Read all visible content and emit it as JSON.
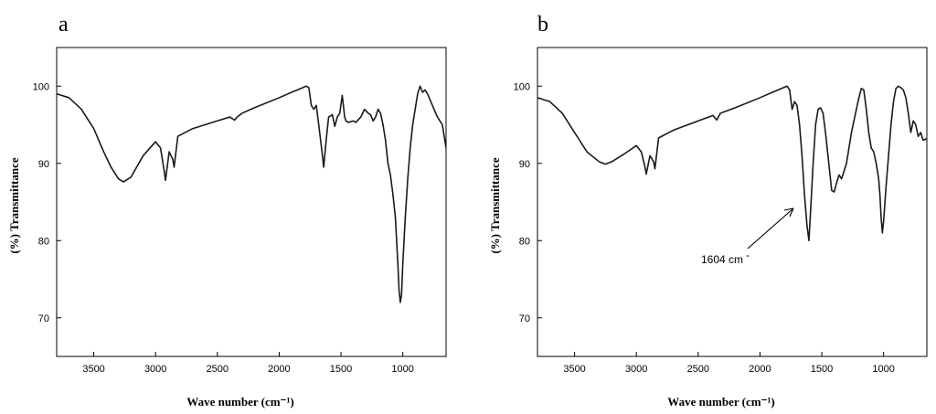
{
  "chart_data": [
    {
      "type": "line",
      "panel_label": "a",
      "xlabel": "Wave number (cm⁻¹)",
      "ylabel": "(%) Transmittance",
      "xlim": [
        3800,
        650
      ],
      "x_reversed": true,
      "ylim": [
        65,
        105
      ],
      "x_ticks": [
        3500,
        3000,
        2500,
        2000,
        1500,
        1000
      ],
      "y_ticks": [
        70,
        80,
        90,
        100
      ],
      "grid": false,
      "annotations": [],
      "series": [
        {
          "x": [
            3800,
            3700,
            3600,
            3500,
            3420,
            3360,
            3300,
            3260,
            3200,
            3100,
            3000,
            2960,
            2930,
            2920,
            2890,
            2860,
            2850,
            2820,
            2700,
            2500,
            2400,
            2360,
            2340,
            2300,
            2200,
            2000,
            1900,
            1780,
            1760,
            1740,
            1720,
            1700,
            1680,
            1650,
            1640,
            1620,
            1600,
            1570,
            1550,
            1530,
            1510,
            1490,
            1470,
            1460,
            1440,
            1400,
            1380,
            1340,
            1310,
            1280,
            1260,
            1240,
            1220,
            1200,
            1180,
            1160,
            1140,
            1120,
            1100,
            1080,
            1060,
            1040,
            1030,
            1020,
            1010,
            1000,
            980,
            960,
            940,
            920,
            900,
            880,
            860,
            840,
            820,
            800,
            760,
            720,
            680,
            650
          ],
          "y": [
            99.0,
            98.5,
            97.0,
            94.5,
            91.5,
            89.5,
            88.0,
            87.6,
            88.2,
            91.0,
            92.8,
            92.0,
            89.0,
            87.8,
            91.5,
            90.5,
            89.5,
            93.5,
            94.5,
            95.5,
            96.0,
            95.6,
            96.0,
            96.5,
            97.2,
            98.5,
            99.2,
            100.0,
            99.8,
            97.5,
            97.0,
            97.5,
            95.0,
            91.0,
            89.5,
            93.0,
            96.0,
            96.3,
            94.8,
            96.0,
            96.5,
            98.8,
            96.0,
            95.5,
            95.3,
            95.5,
            95.3,
            96.0,
            97.0,
            96.5,
            96.3,
            95.5,
            96.0,
            97.0,
            96.5,
            95.0,
            93.0,
            90.0,
            88.5,
            86.0,
            83.0,
            77.0,
            73.5,
            72.0,
            73.0,
            77.0,
            83.0,
            88.0,
            92.0,
            95.0,
            97.0,
            99.0,
            100.0,
            99.2,
            99.5,
            99.0,
            97.5,
            96.0,
            95.0,
            92.0
          ]
        }
      ]
    },
    {
      "type": "line",
      "panel_label": "b",
      "xlabel": "Wave number (cm⁻¹)",
      "ylabel": "(%) Transmittance",
      "xlim": [
        3800,
        650
      ],
      "x_reversed": true,
      "ylim": [
        65,
        105
      ],
      "x_ticks": [
        3500,
        3000,
        2500,
        2000,
        1500,
        1000
      ],
      "y_ticks": [
        70,
        80,
        90,
        100
      ],
      "grid": false,
      "annotations": [
        {
          "text": "1604 cm",
          "superscript": "-",
          "x": 1604,
          "y": 80
        }
      ],
      "series": [
        {
          "x": [
            3800,
            3700,
            3600,
            3500,
            3400,
            3300,
            3250,
            3200,
            3100,
            3000,
            2960,
            2930,
            2920,
            2890,
            2860,
            2850,
            2820,
            2700,
            2500,
            2380,
            2350,
            2320,
            2200,
            2000,
            1900,
            1780,
            1760,
            1740,
            1720,
            1700,
            1680,
            1660,
            1640,
            1620,
            1604,
            1590,
            1570,
            1550,
            1530,
            1510,
            1490,
            1470,
            1440,
            1420,
            1400,
            1380,
            1360,
            1340,
            1300,
            1260,
            1220,
            1200,
            1180,
            1160,
            1140,
            1120,
            1100,
            1080,
            1060,
            1040,
            1030,
            1020,
            1010,
            1000,
            980,
            960,
            940,
            920,
            900,
            880,
            860,
            840,
            820,
            800,
            780,
            760,
            740,
            720,
            700,
            680,
            650
          ],
          "y": [
            98.5,
            98.0,
            96.5,
            94.0,
            91.5,
            90.2,
            89.9,
            90.2,
            91.2,
            92.3,
            91.5,
            89.5,
            88.6,
            91.0,
            90.2,
            89.3,
            93.3,
            94.3,
            95.5,
            96.2,
            95.6,
            96.5,
            97.2,
            98.5,
            99.2,
            100.0,
            99.5,
            97.0,
            98.0,
            97.5,
            95.0,
            91.0,
            86.0,
            82.0,
            80.0,
            84.0,
            90.0,
            95.0,
            97.0,
            97.2,
            96.5,
            94.0,
            89.5,
            86.5,
            86.3,
            87.5,
            88.5,
            88.0,
            90.0,
            94.0,
            97.0,
            98.5,
            99.7,
            99.5,
            97.0,
            94.0,
            92.0,
            91.5,
            90.0,
            88.0,
            86.0,
            83.0,
            81.0,
            82.5,
            87.0,
            91.0,
            95.0,
            98.0,
            99.7,
            100.0,
            99.8,
            99.5,
            98.5,
            96.5,
            94.0,
            95.5,
            95.0,
            93.5,
            94.0,
            93.0,
            93.2
          ]
        }
      ]
    }
  ]
}
